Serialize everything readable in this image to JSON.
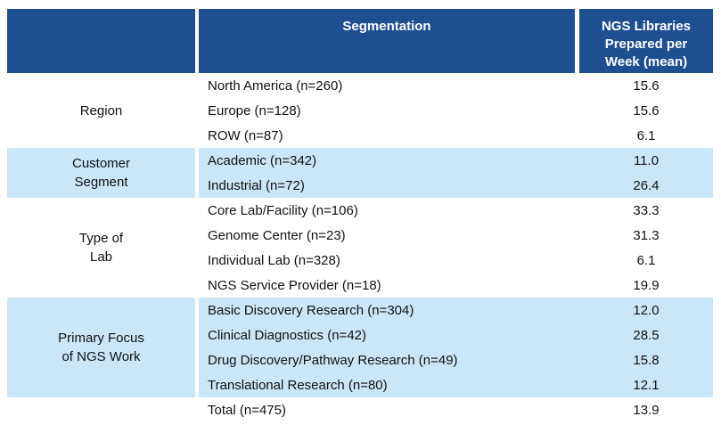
{
  "colors": {
    "header_bg": "#1f4e91",
    "header_text": "#ffffff",
    "band_highlight_bg": "#c9e7f8",
    "body_text": "#111111"
  },
  "table": {
    "header": {
      "group_col": "",
      "segmentation": "Segmentation",
      "value_col_line1": "NGS Libraries",
      "value_col_line2": "Prepared per",
      "value_col_line3": "Week (mean)"
    },
    "groups": [
      {
        "label_line1": "Region",
        "label_line2": "",
        "rows": [
          {
            "label": "North America (n=260)",
            "value": "15.6"
          },
          {
            "label": "Europe (n=128)",
            "value": "15.6"
          },
          {
            "label": "ROW (n=87)",
            "value": "6.1"
          }
        ]
      },
      {
        "label_line1": "Customer",
        "label_line2": "Segment",
        "rows": [
          {
            "label": "Academic (n=342)",
            "value": "11.0"
          },
          {
            "label": "Industrial (n=72)",
            "value": "26.4"
          }
        ]
      },
      {
        "label_line1": "Type of",
        "label_line2": "Lab",
        "rows": [
          {
            "label": "Core Lab/Facility (n=106)",
            "value": "33.3"
          },
          {
            "label": "Genome Center (n=23)",
            "value": "31.3"
          },
          {
            "label": "Individual Lab (n=328)",
            "value": "6.1"
          },
          {
            "label": "NGS Service Provider (n=18)",
            "value": "19.9"
          }
        ]
      },
      {
        "label_line1": "Primary Focus",
        "label_line2": "of NGS Work",
        "rows": [
          {
            "label": "Basic Discovery Research (n=304)",
            "value": "12.0"
          },
          {
            "label": "Clinical Diagnostics (n=42)",
            "value": "28.5"
          },
          {
            "label": "Drug Discovery/Pathway Research (n=49)",
            "value": "15.8"
          },
          {
            "label": "Translational Research (n=80)",
            "value": "12.1"
          }
        ]
      },
      {
        "label_line1": "",
        "label_line2": "",
        "rows": [
          {
            "label": "Total (n=475)",
            "value": "13.9"
          }
        ]
      }
    ]
  },
  "chart_data": {
    "type": "table",
    "title": "",
    "columns": [
      "Group",
      "Segmentation",
      "NGS Libraries Prepared per Week (mean)"
    ],
    "rows": [
      [
        "Region",
        "North America (n=260)",
        15.6
      ],
      [
        "Region",
        "Europe (n=128)",
        15.6
      ],
      [
        "Region",
        "ROW (n=87)",
        6.1
      ],
      [
        "Customer Segment",
        "Academic (n=342)",
        11.0
      ],
      [
        "Customer Segment",
        "Industrial (n=72)",
        26.4
      ],
      [
        "Type of Lab",
        "Core Lab/Facility (n=106)",
        33.3
      ],
      [
        "Type of Lab",
        "Genome Center (n=23)",
        31.3
      ],
      [
        "Type of Lab",
        "Individual Lab (n=328)",
        6.1
      ],
      [
        "Type of Lab",
        "NGS Service Provider (n=18)",
        19.9
      ],
      [
        "Primary Focus of NGS Work",
        "Basic Discovery Research (n=304)",
        12.0
      ],
      [
        "Primary Focus of NGS Work",
        "Clinical Diagnostics (n=42)",
        28.5
      ],
      [
        "Primary Focus of NGS Work",
        "Drug Discovery/Pathway Research (n=49)",
        15.8
      ],
      [
        "Primary Focus of NGS Work",
        "Translational Research (n=80)",
        12.1
      ],
      [
        "",
        "Total (n=475)",
        13.9
      ]
    ]
  }
}
